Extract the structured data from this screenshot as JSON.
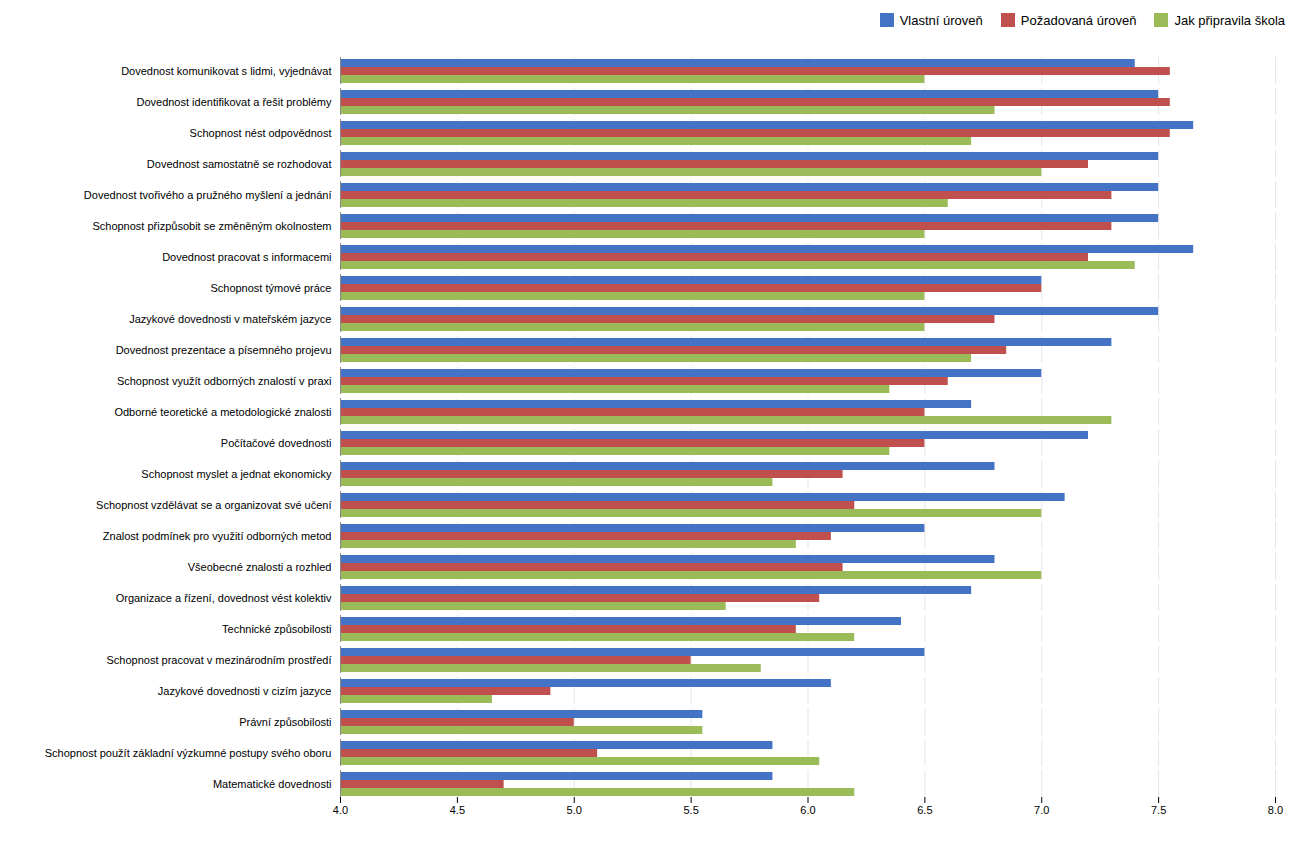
{
  "chart_data": {
    "type": "bar",
    "orientation": "horizontal",
    "categories": [
      "Dovednost komunikovat s lidmi, vyjednávat",
      "Dovednost identifikovat a řešit problémy",
      "Schopnost nést odpovědnost",
      "Dovednost samostatně se rozhodovat",
      "Dovednost tvořivého a pružného myšlení a jednání",
      "Schopnost přizpůsobit se změněným okolnostem",
      "Dovednost pracovat s informacemi",
      "Schopnost týmové práce",
      "Jazykové dovednosti v mateřském jazyce",
      "Dovednost prezentace a písemného projevu",
      "Schopnost využít odborných znalostí v praxi",
      "Odborné teoretické a metodologické znalosti",
      "Počítačové dovednosti",
      "Schopnost myslet a jednat ekonomicky",
      "Schopnost vzdělávat se a organizovat své učení",
      "Znalost podmínek pro využití odborných metod",
      "Všeobecné znalosti a rozhled",
      "Organizace a řízení, dovednost vést kolektiv",
      "Technické způsobilosti",
      "Schopnost pracovat v mezinárodním prostředí",
      "Jazykové dovednosti v cizím jazyce",
      "Právní způsobilosti",
      "Schopnost použít základní výzkumné postupy svého oboru",
      "Matematické dovednosti"
    ],
    "series": [
      {
        "name": "Vlastní úroveň",
        "color": "#4472C4",
        "values": [
          7.4,
          7.5,
          7.65,
          7.5,
          7.5,
          7.5,
          7.65,
          7.0,
          7.5,
          7.3,
          7.0,
          6.7,
          7.2,
          6.8,
          7.1,
          6.5,
          6.8,
          6.7,
          6.4,
          6.5,
          6.1,
          5.55,
          5.85,
          5.85
        ]
      },
      {
        "name": "Požadovaná úroveň",
        "color": "#C0504D",
        "values": [
          7.55,
          7.55,
          7.55,
          7.2,
          7.3,
          7.3,
          7.2,
          7.0,
          6.8,
          6.85,
          6.6,
          6.5,
          6.5,
          6.15,
          6.2,
          6.1,
          6.15,
          6.05,
          5.95,
          5.5,
          4.9,
          5.0,
          5.1,
          4.7
        ]
      },
      {
        "name": "Jak připravila škola",
        "color": "#9BBB59",
        "values": [
          6.5,
          6.8,
          6.7,
          7.0,
          6.6,
          6.5,
          7.4,
          6.5,
          6.5,
          6.7,
          6.35,
          7.3,
          6.35,
          5.85,
          7.0,
          5.95,
          7.0,
          5.65,
          6.2,
          5.8,
          4.65,
          5.55,
          6.05,
          6.2
        ]
      }
    ],
    "xlim": [
      4.0,
      8.0
    ],
    "xticks": [
      {
        "value": 4.0,
        "label": "4.0"
      },
      4.5,
      {
        "value": 5.0,
        "label": "5.0"
      },
      5.5,
      {
        "value": 6.0,
        "label": "6.0"
      },
      6.5,
      {
        "value": 7.0,
        "label": "7.0"
      },
      7.5,
      {
        "value": 8.0,
        "label": "8.0"
      }
    ],
    "grid": true,
    "legend": "upper right"
  }
}
